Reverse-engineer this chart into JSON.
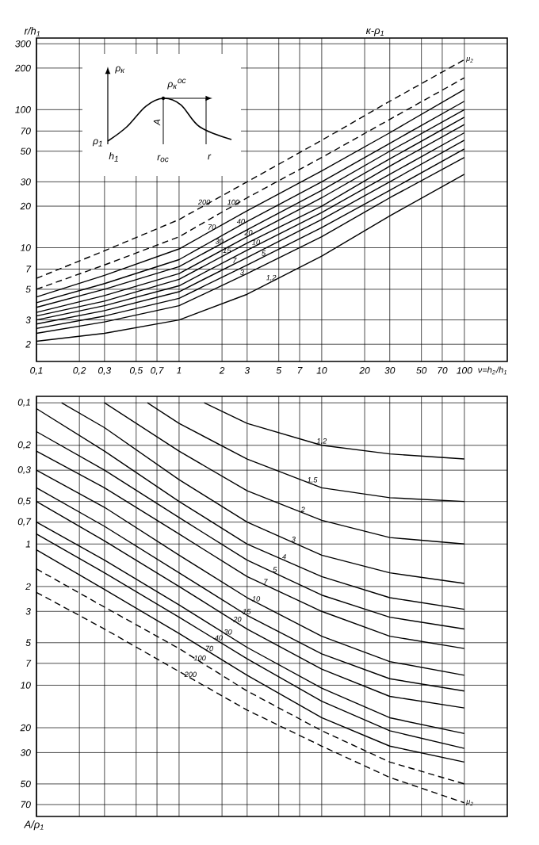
{
  "chart_data": [
    {
      "type": "line",
      "title": "к-ρ$_{1}$",
      "xlabel": "ν=h$_{2}$/h$_{1}$",
      "ylabel": "r/h$_{1}$",
      "log": "xy",
      "grid": true,
      "line_style": "solid",
      "annotations": [
        "μ$_{2}$",
        "ρ$_{к}$",
        "ρ$_{к}$$^{ос}$",
        "A",
        "ρ$_{1}$",
        "h$_{1}$",
        "r$_{ос}$",
        "r"
      ],
      "xlim": [
        0.1,
        200
      ],
      "ylim": [
        1.5,
        330
      ],
      "xticks": [
        {
          "value": 0.1,
          "label": "0,1"
        },
        {
          "value": 0.2,
          "label": "0,2"
        },
        {
          "value": 0.3,
          "label": "0,3"
        },
        {
          "value": 0.5,
          "label": "0,5"
        },
        {
          "value": 0.7,
          "label": "0,7"
        },
        1,
        2,
        3,
        5,
        7,
        10,
        20,
        30,
        50,
        70,
        100
      ],
      "yticks": [
        2,
        3,
        5,
        7,
        10,
        20,
        30,
        50,
        70,
        100,
        200,
        300
      ],
      "x": [
        0.1,
        0.3,
        1,
        3,
        10,
        30,
        100
      ],
      "series": [
        {
          "name": "1,2",
          "color": "#000000",
          "values": [
            2.1,
            2.4,
            3.0,
            4.6,
            8.7,
            17,
            34
          ]
        },
        {
          "name": "3",
          "color": "#000000",
          "values": [
            2.4,
            2.9,
            3.8,
            6.5,
            12,
            23,
            45
          ]
        },
        {
          "name": "5",
          "color": "#000000",
          "values": [
            2.6,
            3.2,
            4.3,
            7.5,
            14,
            26,
            52
          ]
        },
        {
          "name": "7",
          "color": "#000000",
          "values": [
            2.8,
            3.5,
            4.8,
            8.5,
            16,
            30,
            60
          ]
        },
        {
          "name": "10",
          "color": "#000000",
          "values": [
            3.0,
            3.8,
            5.3,
            9.6,
            18,
            34,
            68
          ]
        },
        {
          "name": "15",
          "color": "#000000",
          "values": [
            3.2,
            4.1,
            5.9,
            10.8,
            20,
            39,
            78
          ]
        },
        {
          "name": "20",
          "color": "#000000",
          "values": [
            3.4,
            4.5,
            6.5,
            12,
            23,
            44,
            88
          ]
        },
        {
          "name": "30",
          "color": "#000000",
          "values": [
            3.7,
            5.0,
            7.3,
            13.5,
            26,
            50,
            100
          ]
        },
        {
          "name": "40",
          "color": "#000000",
          "values": [
            4.0,
            5.5,
            8.2,
            15.5,
            30,
            57,
            115
          ]
        },
        {
          "name": "70",
          "color": "#000000",
          "values": [
            4.4,
            6.3,
            9.8,
            18.5,
            36,
            68,
            140
          ]
        },
        {
          "name": "100",
          "color": "#000000",
          "line_style": "dashed",
          "values": [
            5.0,
            7.5,
            12,
            23,
            45,
            85,
            170
          ]
        },
        {
          "name": "200",
          "color": "#000000",
          "line_style": "dashed",
          "values": [
            6.0,
            9.5,
            16,
            30,
            60,
            115,
            230
          ]
        }
      ]
    },
    {
      "type": "line",
      "ylabel": "A/ρ$_{1}$",
      "log": "xy",
      "grid": true,
      "line_style": "solid",
      "tick_labels": "y",
      "annotations": [
        "μ$_{2}$"
      ],
      "xlim": [
        0.1,
        200
      ],
      "ylim": [
        85,
        0.09
      ],
      "xticks": [
        0.1,
        0.2,
        0.3,
        0.5,
        0.7,
        1,
        2,
        3,
        5,
        7,
        10,
        20,
        30,
        50,
        70,
        100
      ],
      "yticks": [
        {
          "value": 0.1,
          "label": "0,1"
        },
        {
          "value": 0.2,
          "label": "0,2"
        },
        {
          "value": 0.3,
          "label": "0,3"
        },
        {
          "value": 0.5,
          "label": "0,5"
        },
        {
          "value": 0.7,
          "label": "0,7"
        },
        1,
        2,
        3,
        5,
        7,
        10,
        20,
        30,
        50,
        70
      ],
      "series": [
        {
          "name": "1,2",
          "color": "#000000",
          "x": [
            1.5,
            3,
            10,
            30,
            100
          ],
          "values": [
            0.1,
            0.14,
            0.2,
            0.23,
            0.25
          ]
        },
        {
          "name": "1,5",
          "color": "#000000",
          "x": [
            0.6,
            1,
            3,
            10,
            30,
            100
          ],
          "values": [
            0.1,
            0.14,
            0.25,
            0.4,
            0.47,
            0.5
          ]
        },
        {
          "name": "2",
          "color": "#000000",
          "x": [
            0.3,
            1,
            3,
            10,
            30,
            100
          ],
          "values": [
            0.1,
            0.22,
            0.42,
            0.68,
            0.9,
            1.0
          ]
        },
        {
          "name": "3",
          "color": "#000000",
          "x": [
            0.15,
            0.3,
            1,
            3,
            10,
            30,
            100
          ],
          "values": [
            0.1,
            0.15,
            0.35,
            0.7,
            1.2,
            1.6,
            1.9
          ]
        },
        {
          "name": "4",
          "color": "#000000",
          "x": [
            0.1,
            0.3,
            1,
            3,
            10,
            30,
            100
          ],
          "values": [
            0.11,
            0.22,
            0.5,
            1.0,
            1.7,
            2.4,
            2.9
          ]
        },
        {
          "name": "5",
          "color": "#000000",
          "x": [
            0.1,
            0.3,
            1,
            3,
            10,
            30,
            100
          ],
          "values": [
            0.16,
            0.3,
            0.65,
            1.3,
            2.3,
            3.3,
            4
          ]
        },
        {
          "name": "7",
          "color": "#000000",
          "x": [
            0.1,
            0.3,
            1,
            3,
            10,
            30,
            100
          ],
          "values": [
            0.22,
            0.4,
            0.85,
            1.7,
            3.0,
            4.5,
            5.5
          ]
        },
        {
          "name": "10",
          "color": "#000000",
          "x": [
            0.1,
            0.3,
            1,
            3,
            10,
            30,
            100
          ],
          "values": [
            0.3,
            0.55,
            1.2,
            2.4,
            4.5,
            6.8,
            8.5
          ]
        },
        {
          "name": "15",
          "color": "#000000",
          "x": [
            0.1,
            0.3,
            1,
            3,
            10,
            30,
            100
          ],
          "values": [
            0.4,
            0.75,
            1.6,
            3.2,
            6,
            9,
            11
          ]
        },
        {
          "name": "20",
          "color": "#000000",
          "x": [
            0.1,
            0.3,
            1,
            3,
            10,
            30,
            100
          ],
          "values": [
            0.5,
            0.95,
            2.0,
            4.0,
            7.7,
            12,
            14.5
          ]
        },
        {
          "name": "30",
          "color": "#000000",
          "x": [
            0.1,
            0.3,
            1,
            3,
            10,
            30,
            100
          ],
          "values": [
            0.7,
            1.3,
            2.7,
            5.4,
            10.5,
            17,
            22
          ]
        },
        {
          "name": "40",
          "color": "#000000",
          "x": [
            0.1,
            0.3,
            1,
            3,
            10,
            30,
            100
          ],
          "values": [
            0.85,
            1.6,
            3.3,
            6.5,
            13,
            21,
            28
          ]
        },
        {
          "name": "70",
          "color": "#000000",
          "x": [
            0.1,
            0.3,
            1,
            3,
            10,
            30,
            100
          ],
          "values": [
            1.1,
            2.1,
            4.3,
            8.5,
            17,
            27,
            35
          ]
        },
        {
          "name": "100",
          "color": "#000000",
          "line_style": "dashed",
          "x": [
            0.1,
            0.3,
            1,
            3,
            10,
            30,
            100
          ],
          "values": [
            1.5,
            2.8,
            5.5,
            11,
            21,
            35,
            50
          ]
        },
        {
          "name": "200",
          "color": "#000000",
          "line_style": "dashed",
          "x": [
            0.1,
            0.3,
            1,
            3,
            10,
            30,
            100
          ],
          "values": [
            2.2,
            4,
            8,
            15,
            27,
            45,
            68
          ]
        }
      ]
    }
  ]
}
